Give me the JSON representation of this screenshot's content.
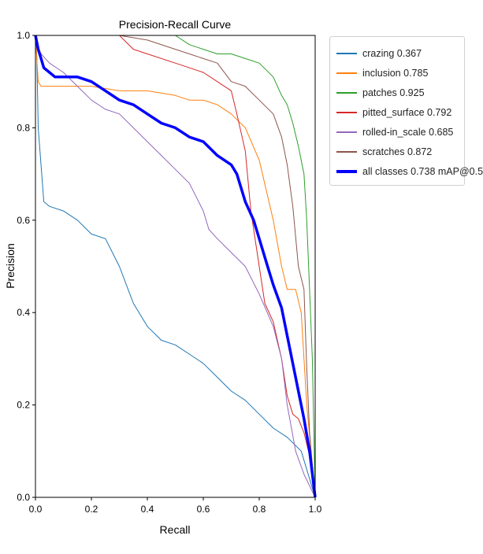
{
  "chart_data": {
    "type": "line",
    "title": "Precision-Recall Curve",
    "xlabel": "Recall",
    "ylabel": "Precision",
    "xlim": [
      0,
      1
    ],
    "ylim": [
      0,
      1
    ],
    "xticks": [
      "0.0",
      "0.2",
      "0.4",
      "0.6",
      "0.8",
      "1.0"
    ],
    "yticks": [
      "0.0",
      "0.2",
      "0.4",
      "0.6",
      "0.8",
      "1.0"
    ],
    "grid": false,
    "legend_position": "outside-right",
    "series": [
      {
        "name": "crazing 0.367",
        "color": "#1f77b4",
        "line_width": 1,
        "x": [
          0.0,
          0.005,
          0.01,
          0.03,
          0.05,
          0.1,
          0.15,
          0.2,
          0.25,
          0.3,
          0.35,
          0.4,
          0.45,
          0.5,
          0.55,
          0.6,
          0.65,
          0.7,
          0.75,
          0.8,
          0.85,
          0.9,
          0.95,
          1.0
        ],
        "y": [
          1.0,
          0.95,
          0.8,
          0.64,
          0.63,
          0.62,
          0.6,
          0.57,
          0.56,
          0.5,
          0.42,
          0.37,
          0.34,
          0.33,
          0.31,
          0.29,
          0.26,
          0.23,
          0.21,
          0.18,
          0.15,
          0.13,
          0.1,
          0.0
        ]
      },
      {
        "name": "inclusion 0.785",
        "color": "#ff7f0e",
        "line_width": 1,
        "x": [
          0.0,
          0.01,
          0.02,
          0.05,
          0.1,
          0.2,
          0.3,
          0.4,
          0.5,
          0.55,
          0.6,
          0.65,
          0.7,
          0.75,
          0.8,
          0.85,
          0.88,
          0.9,
          0.93,
          0.95,
          0.97,
          1.0
        ],
        "y": [
          1.0,
          0.9,
          0.89,
          0.89,
          0.89,
          0.89,
          0.88,
          0.88,
          0.87,
          0.86,
          0.86,
          0.85,
          0.83,
          0.8,
          0.73,
          0.6,
          0.5,
          0.45,
          0.45,
          0.4,
          0.2,
          0.0
        ]
      },
      {
        "name": "patches 0.925",
        "color": "#2ca02c",
        "line_width": 1,
        "x": [
          0.0,
          0.3,
          0.4,
          0.5,
          0.55,
          0.6,
          0.65,
          0.7,
          0.75,
          0.8,
          0.85,
          0.88,
          0.9,
          0.92,
          0.94,
          0.96,
          0.97,
          0.98,
          0.99,
          1.0
        ],
        "y": [
          1.0,
          1.0,
          1.0,
          1.0,
          0.98,
          0.97,
          0.96,
          0.96,
          0.95,
          0.94,
          0.91,
          0.87,
          0.85,
          0.81,
          0.76,
          0.7,
          0.6,
          0.45,
          0.3,
          0.0
        ]
      },
      {
        "name": "pitted_surface 0.792",
        "color": "#d62728",
        "line_width": 1,
        "x": [
          0.0,
          0.3,
          0.35,
          0.4,
          0.5,
          0.6,
          0.65,
          0.7,
          0.72,
          0.75,
          0.77,
          0.8,
          0.82,
          0.85,
          0.88,
          0.9,
          0.92,
          0.94,
          0.96,
          0.98,
          1.0
        ],
        "y": [
          1.0,
          1.0,
          0.97,
          0.96,
          0.94,
          0.92,
          0.9,
          0.88,
          0.83,
          0.75,
          0.62,
          0.5,
          0.42,
          0.38,
          0.3,
          0.22,
          0.18,
          0.17,
          0.14,
          0.09,
          0.0
        ]
      },
      {
        "name": "rolled-in_scale 0.685",
        "color": "#9467bd",
        "line_width": 1,
        "x": [
          0.0,
          0.005,
          0.02,
          0.05,
          0.1,
          0.15,
          0.2,
          0.25,
          0.3,
          0.35,
          0.4,
          0.45,
          0.5,
          0.55,
          0.6,
          0.62,
          0.65,
          0.7,
          0.75,
          0.8,
          0.85,
          0.88,
          0.9,
          0.93,
          0.96,
          1.0
        ],
        "y": [
          1.0,
          0.98,
          0.96,
          0.94,
          0.92,
          0.89,
          0.86,
          0.84,
          0.83,
          0.8,
          0.77,
          0.74,
          0.71,
          0.68,
          0.62,
          0.58,
          0.56,
          0.53,
          0.5,
          0.44,
          0.37,
          0.3,
          0.2,
          0.1,
          0.05,
          0.0
        ]
      },
      {
        "name": "scratches 0.872",
        "color": "#8c564b",
        "line_width": 1,
        "x": [
          0.0,
          0.3,
          0.4,
          0.5,
          0.55,
          0.6,
          0.65,
          0.7,
          0.75,
          0.8,
          0.85,
          0.88,
          0.9,
          0.92,
          0.94,
          0.96,
          0.97,
          0.98,
          1.0
        ],
        "y": [
          1.0,
          1.0,
          0.99,
          0.97,
          0.96,
          0.95,
          0.94,
          0.9,
          0.89,
          0.86,
          0.83,
          0.78,
          0.72,
          0.63,
          0.5,
          0.45,
          0.28,
          0.14,
          0.0
        ]
      },
      {
        "name": "all classes 0.738 mAP@0.5",
        "color": "#0000ff",
        "line_width": 3.5,
        "x": [
          0.0,
          0.01,
          0.02,
          0.03,
          0.05,
          0.07,
          0.1,
          0.15,
          0.2,
          0.25,
          0.3,
          0.35,
          0.4,
          0.45,
          0.5,
          0.55,
          0.6,
          0.65,
          0.7,
          0.72,
          0.75,
          0.78,
          0.8,
          0.83,
          0.85,
          0.88,
          0.9,
          0.92,
          0.94,
          0.96,
          0.98,
          1.0
        ],
        "y": [
          1.0,
          0.97,
          0.95,
          0.93,
          0.92,
          0.91,
          0.91,
          0.91,
          0.9,
          0.88,
          0.86,
          0.85,
          0.83,
          0.81,
          0.8,
          0.78,
          0.77,
          0.74,
          0.72,
          0.7,
          0.64,
          0.6,
          0.56,
          0.5,
          0.46,
          0.41,
          0.35,
          0.29,
          0.23,
          0.17,
          0.1,
          0.0
        ]
      }
    ]
  }
}
